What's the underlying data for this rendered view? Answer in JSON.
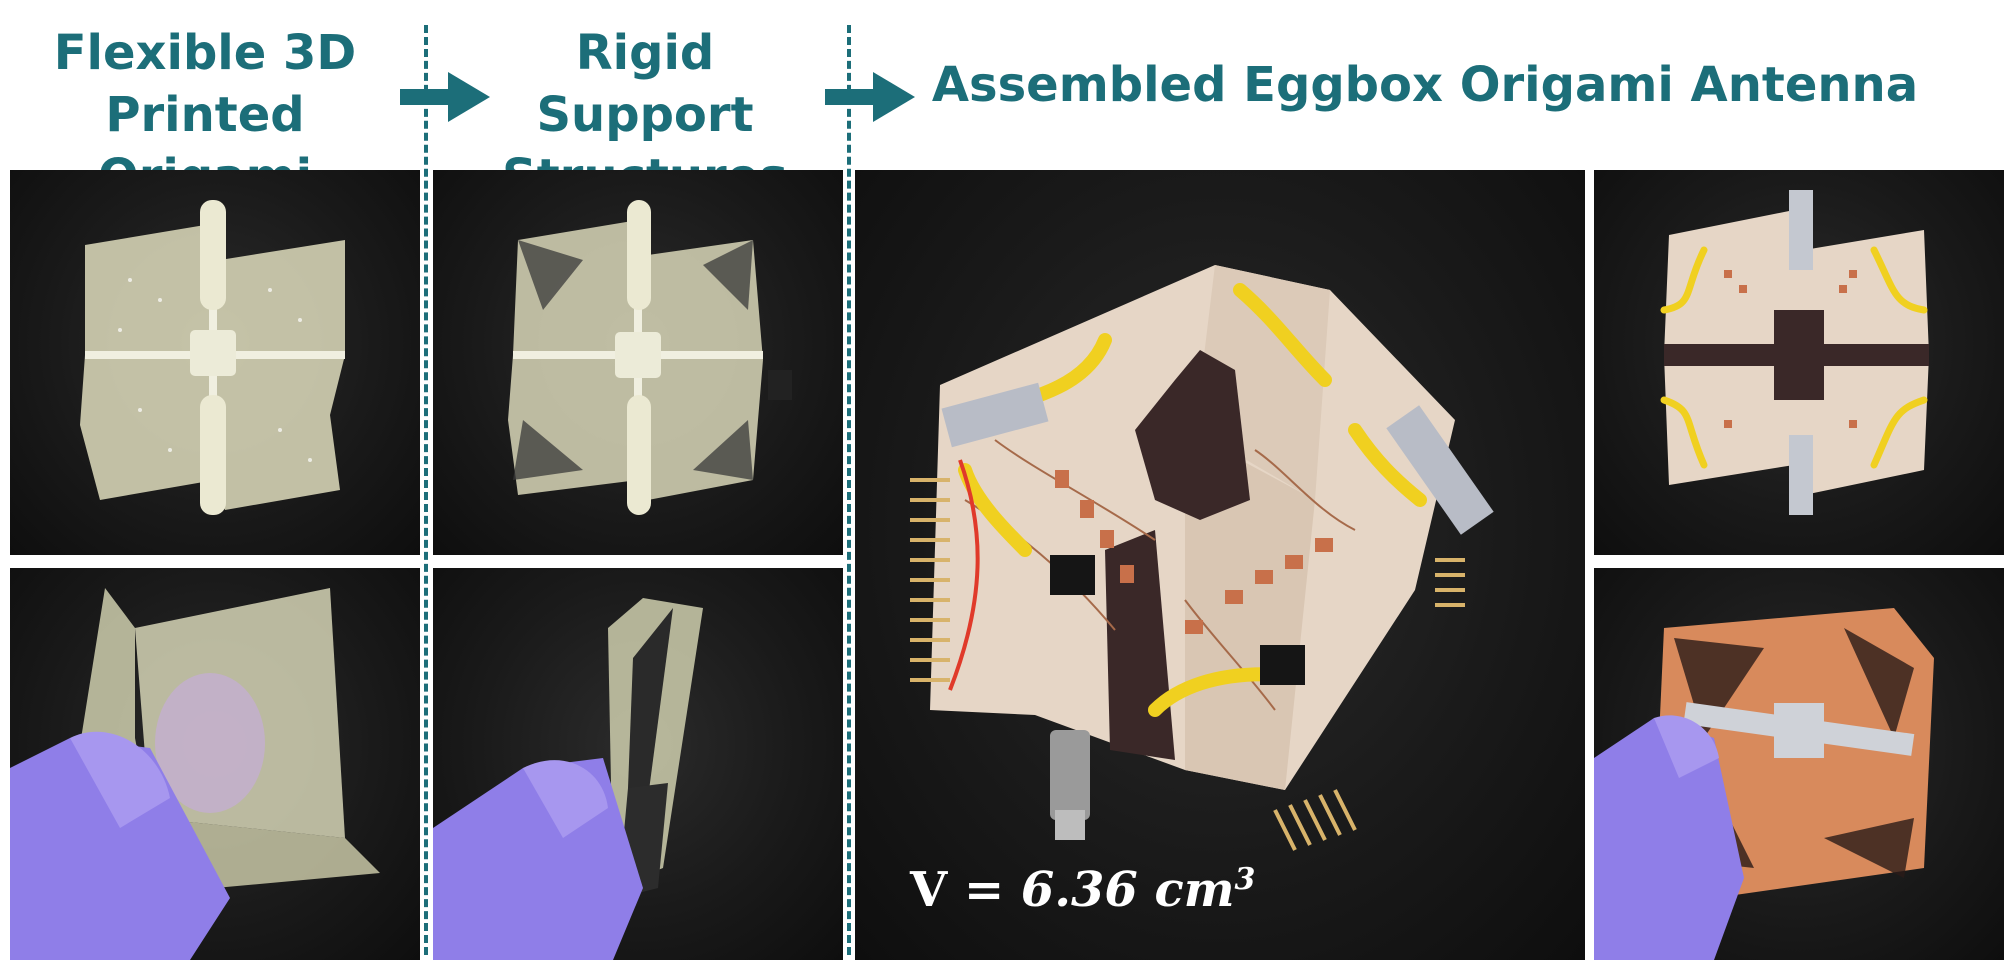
{
  "headers": {
    "flexible": [
      "Flexible 3D",
      "Printed Origami"
    ],
    "rigid": [
      "Rigid Support",
      "Structures"
    ],
    "assembled": "Assembled Eggbox Origami Antenna"
  },
  "volume_label": {
    "var": "V",
    "eq": " = ",
    "value": "6.36",
    "unit": "cm",
    "exponent": "3"
  },
  "colors": {
    "accent": "#1c6e79",
    "panel_bg": "#111111",
    "glove": "#8f7ee8",
    "paper": "#e8d8c8",
    "copper": "#d88a5c"
  },
  "icons": [
    "arrow-right-icon",
    "arrow-right-icon"
  ]
}
